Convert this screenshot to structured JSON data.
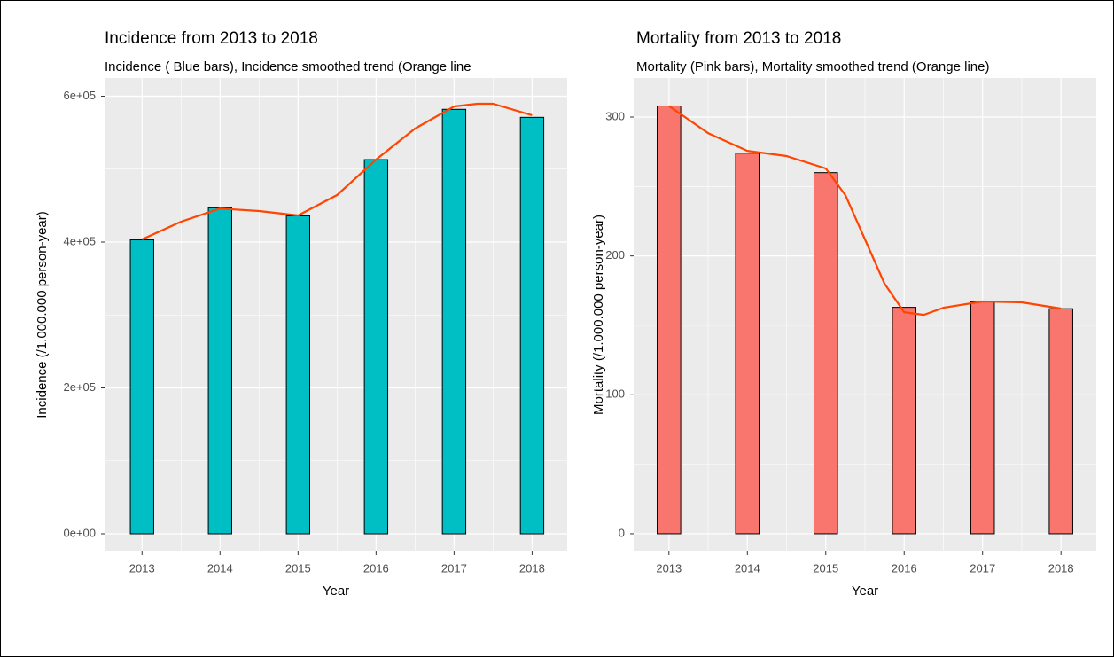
{
  "chart_data": [
    {
      "type": "bar",
      "title": "Incidence from 2013 to 2018",
      "subtitle": "Incidence ( Blue bars), Incidence smoothed trend (Orange line",
      "x_label": "Year",
      "y_label": "Incidence (/1.000.000 person-year)",
      "x": [
        2013,
        2014,
        2015,
        2016,
        2017,
        2018
      ],
      "bars": {
        "color": "#00bfc4",
        "values": [
          403000,
          447000,
          436000,
          513000,
          582000,
          571000
        ]
      },
      "trend": {
        "color": "#ff4500",
        "x": [
          2013,
          2013.5,
          2014,
          2014.5,
          2015,
          2015.5,
          2016,
          2016.5,
          2017,
          2017.3,
          2017.5,
          2018
        ],
        "values": [
          403600,
          428000,
          446000,
          442500,
          436500,
          464400,
          513000,
          555600,
          586000,
          589700,
          589700,
          573800
        ]
      },
      "xlim": [
        2012.52,
        2018.45
      ],
      "xticks": [
        2013,
        2014,
        2015,
        2016,
        2017,
        2018
      ],
      "ylim": [
        -24300,
        624900
      ],
      "yticks": [
        {
          "value": 0,
          "label": "0e+00"
        },
        {
          "value": 200000,
          "label": "2e+05"
        },
        {
          "value": 400000,
          "label": "4e+05"
        },
        {
          "value": 600000,
          "label": "6e+05"
        }
      ],
      "grid": true
    },
    {
      "type": "bar",
      "title": "Mortality from 2013 to 2018",
      "subtitle": "Mortality (Pink bars), Mortality smoothed trend (Orange line)",
      "x_label": "Year",
      "y_label": "Mortality (/1.000.000 person-year)",
      "x": [
        2013,
        2014,
        2015,
        2016,
        2017,
        2018
      ],
      "bars": {
        "color": "#f8766d",
        "values": [
          308,
          274,
          260,
          163,
          167,
          162
        ]
      },
      "trend": {
        "color": "#ff4500",
        "x": [
          2013,
          2013.5,
          2014,
          2014.5,
          2015,
          2015.25,
          2015.5,
          2015.75,
          2016,
          2016.25,
          2016.5,
          2017,
          2017.5,
          2018
        ],
        "values": [
          308,
          288.4,
          275.7,
          271.9,
          263,
          243.8,
          211.9,
          180,
          159.5,
          157.6,
          162.7,
          167.2,
          166.6,
          162.1
        ]
      },
      "xlim": [
        2012.55,
        2018.45
      ],
      "xticks": [
        2013,
        2014,
        2015,
        2016,
        2017,
        2018
      ],
      "ylim": [
        -12.8,
        328.1
      ],
      "yticks": [
        0,
        100,
        200,
        300
      ],
      "grid": true
    }
  ]
}
